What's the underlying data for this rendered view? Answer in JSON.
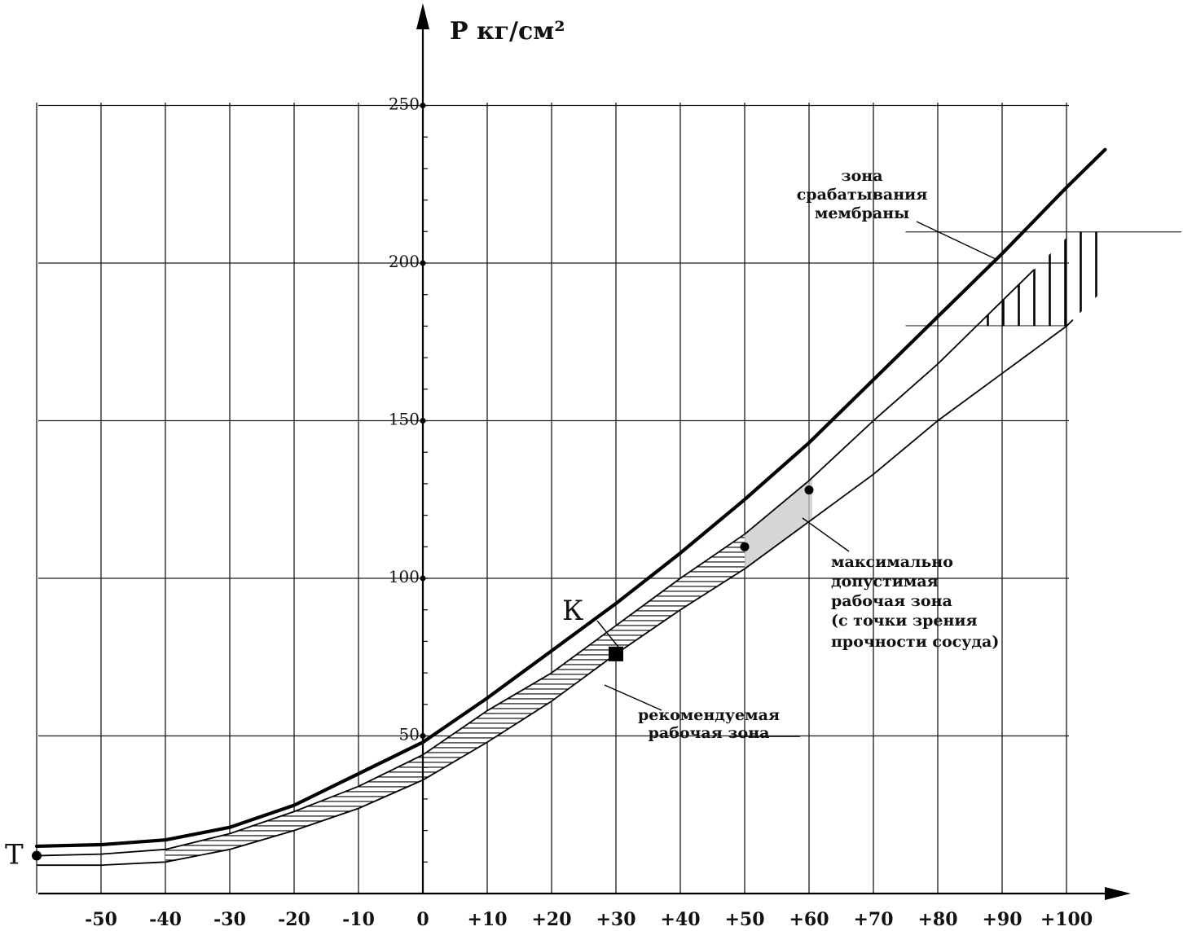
{
  "chart_data": {
    "type": "line",
    "title": "",
    "xlabel": "",
    "ylabel": "P кг/см²",
    "xlim": [
      -60,
      100
    ],
    "ylim": [
      0,
      250
    ],
    "grid": true,
    "x_ticks": [
      -50,
      -40,
      -30,
      -20,
      -10,
      0,
      10,
      20,
      30,
      40,
      50,
      60,
      70,
      80,
      90,
      100
    ],
    "x_tick_labels": [
      "-50",
      "-40",
      "-30",
      "-20",
      "-10",
      "0",
      "+10",
      "+20",
      "+30",
      "+40",
      "+50",
      "+60",
      "+70",
      "+80",
      "+90",
      "+100"
    ],
    "y_ticks": [
      50,
      100,
      150,
      200,
      250
    ],
    "y_tick_labels": [
      "50",
      "100",
      "150",
      "200",
      "250"
    ],
    "series": [
      {
        "x": [
          -60,
          -50,
          -40,
          -30,
          -20,
          -10,
          0,
          10,
          20,
          30,
          40,
          50,
          60,
          70,
          80,
          90,
          95
        ],
        "y": [
          12,
          12.5,
          14,
          19,
          26,
          34,
          44,
          58,
          70,
          85,
          100,
          114,
          131,
          150,
          168,
          188,
          198
        ]
      },
      {
        "x": [
          -60,
          -50,
          -40,
          -30,
          -20,
          -10,
          0,
          10,
          20,
          30,
          40,
          50,
          60,
          70,
          80,
          90,
          100,
          106
        ],
        "y": [
          15,
          15.5,
          17,
          21,
          28,
          38,
          48,
          62,
          77,
          92,
          108,
          125,
          143,
          163,
          183,
          203,
          224,
          236
        ]
      },
      {
        "x": [
          -60,
          -50,
          -40,
          -30,
          -20,
          -10,
          0,
          10,
          20,
          30,
          40,
          50,
          60,
          70,
          80,
          90,
          100,
          101
        ],
        "y": [
          9,
          9,
          10,
          14,
          20,
          27,
          36,
          48,
          61,
          76,
          90,
          103,
          118,
          133,
          150,
          165,
          180,
          182
        ]
      }
    ],
    "zones": {
      "recommended": {
        "x_range": [
          -40,
          50
        ]
      },
      "max_allowed": {
        "x_range": [
          50,
          60
        ]
      },
      "membrane": {
        "y_range": [
          180,
          210
        ],
        "x_range": [
          75,
          106
        ]
      }
    },
    "points": [
      {
        "label": "Т",
        "x": -60,
        "y": 12
      },
      {
        "label": "К",
        "x": 30,
        "y": 76
      },
      {
        "label": "",
        "x": 50,
        "y": 110
      },
      {
        "label": "",
        "x": 60,
        "y": 128
      }
    ],
    "annotations": {
      "membrane_zone": [
        "зона",
        "срабатывания",
        "мембраны"
      ],
      "max_zone": [
        "максимально",
        "допустимая",
        "рабочая зона",
        "(с точки зрения",
        "прочности сосуда)"
      ],
      "recommended_zone": [
        "рекомендуемая",
        "рабочая зона"
      ]
    }
  }
}
